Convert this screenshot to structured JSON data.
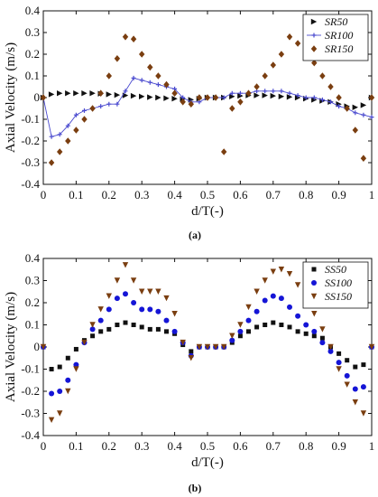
{
  "chart_data": [
    {
      "type": "line",
      "panel_label": "(a)",
      "xlabel": "d/T(-)",
      "ylabel": "Axial Velocity (m/s)",
      "xlim": [
        0,
        1
      ],
      "ylim": [
        -0.4,
        0.4
      ],
      "xticks": [
        0,
        0.1,
        0.2,
        0.3,
        0.4,
        0.5,
        0.6,
        0.7,
        0.8,
        0.9,
        1
      ],
      "yticks": [
        -0.4,
        -0.3,
        -0.2,
        -0.1,
        0,
        0.1,
        0.2,
        0.3,
        0.4
      ],
      "grid": false,
      "legend_position": "top-right",
      "series": [
        {
          "name": "SR50",
          "marker": "triangle-right",
          "color": "#111111",
          "line": false,
          "x": [
            0,
            0.025,
            0.05,
            0.075,
            0.1,
            0.125,
            0.15,
            0.175,
            0.2,
            0.225,
            0.25,
            0.275,
            0.3,
            0.325,
            0.35,
            0.375,
            0.4,
            0.425,
            0.45,
            0.475,
            0.5,
            0.525,
            0.55,
            0.575,
            0.6,
            0.625,
            0.65,
            0.675,
            0.7,
            0.725,
            0.75,
            0.775,
            0.8,
            0.825,
            0.85,
            0.875,
            0.9,
            0.925,
            0.95,
            0.975,
            1.0
          ],
          "y": [
            0,
            0.015,
            0.02,
            0.02,
            0.02,
            0.02,
            0.02,
            0.018,
            0.015,
            0.012,
            0.01,
            0.008,
            0.005,
            0.002,
            0,
            -0.003,
            -0.005,
            -0.007,
            -0.01,
            -0.005,
            0,
            0,
            0,
            0.005,
            0.008,
            0.01,
            0.01,
            0.01,
            0.008,
            0.005,
            0.003,
            0,
            -0.005,
            -0.01,
            -0.015,
            -0.02,
            -0.03,
            -0.04,
            -0.045,
            -0.035,
            0
          ]
        },
        {
          "name": "SR100",
          "marker": "plus",
          "color": "#4a4acf",
          "line": true,
          "x": [
            0,
            0.025,
            0.05,
            0.075,
            0.1,
            0.125,
            0.15,
            0.175,
            0.2,
            0.225,
            0.25,
            0.275,
            0.3,
            0.325,
            0.35,
            0.375,
            0.4,
            0.425,
            0.45,
            0.475,
            0.5,
            0.525,
            0.55,
            0.575,
            0.6,
            0.625,
            0.65,
            0.675,
            0.7,
            0.725,
            0.75,
            0.775,
            0.8,
            0.825,
            0.85,
            0.875,
            0.9,
            0.925,
            0.95,
            0.975,
            1.0
          ],
          "y": [
            0,
            -0.18,
            -0.17,
            -0.13,
            -0.08,
            -0.06,
            -0.05,
            -0.04,
            -0.03,
            -0.03,
            0.03,
            0.09,
            0.08,
            0.07,
            0.06,
            0.05,
            0.04,
            0,
            -0.02,
            -0.02,
            0,
            0,
            0,
            0.02,
            0.02,
            0.02,
            0.03,
            0.03,
            0.03,
            0.03,
            0.02,
            0.01,
            0,
            0,
            -0.01,
            -0.02,
            -0.04,
            -0.05,
            -0.07,
            -0.08,
            -0.09
          ]
        },
        {
          "name": "SR150",
          "marker": "diamond",
          "color": "#7a3e10",
          "line": false,
          "x": [
            0,
            0.025,
            0.05,
            0.075,
            0.1,
            0.125,
            0.15,
            0.175,
            0.2,
            0.225,
            0.25,
            0.275,
            0.3,
            0.325,
            0.35,
            0.375,
            0.4,
            0.425,
            0.45,
            0.475,
            0.5,
            0.525,
            0.55,
            0.575,
            0.6,
            0.625,
            0.65,
            0.675,
            0.7,
            0.725,
            0.75,
            0.775,
            0.8,
            0.825,
            0.85,
            0.875,
            0.9,
            0.925,
            0.95,
            0.975,
            1.0
          ],
          "y": [
            0,
            -0.3,
            -0.25,
            -0.2,
            -0.15,
            -0.1,
            -0.05,
            0.02,
            0.1,
            0.18,
            0.28,
            0.27,
            0.2,
            0.14,
            0.1,
            0.06,
            0.02,
            -0.02,
            -0.03,
            0,
            0,
            0,
            -0.25,
            -0.05,
            -0.02,
            0.02,
            0.05,
            0.1,
            0.15,
            0.2,
            0.28,
            0.25,
            0.2,
            0.16,
            0.1,
            0.05,
            0,
            -0.05,
            -0.15,
            -0.28,
            0
          ]
        }
      ]
    },
    {
      "type": "line",
      "panel_label": "(b)",
      "xlabel": "d/T(-)",
      "ylabel": "Axial Velocity (m/s)",
      "xlim": [
        0,
        1
      ],
      "ylim": [
        -0.4,
        0.4
      ],
      "xticks": [
        0,
        0.1,
        0.2,
        0.3,
        0.4,
        0.5,
        0.6,
        0.7,
        0.8,
        0.9,
        1
      ],
      "yticks": [
        -0.4,
        -0.3,
        -0.2,
        -0.1,
        0,
        0.1,
        0.2,
        0.3,
        0.4
      ],
      "grid": false,
      "legend_position": "top-right",
      "series": [
        {
          "name": "SS50",
          "marker": "square",
          "color": "#111111",
          "line": false,
          "x": [
            0,
            0.025,
            0.05,
            0.075,
            0.1,
            0.125,
            0.15,
            0.175,
            0.2,
            0.225,
            0.25,
            0.275,
            0.3,
            0.325,
            0.35,
            0.375,
            0.4,
            0.425,
            0.45,
            0.475,
            0.5,
            0.525,
            0.55,
            0.575,
            0.6,
            0.625,
            0.65,
            0.675,
            0.7,
            0.725,
            0.75,
            0.775,
            0.8,
            0.825,
            0.85,
            0.875,
            0.9,
            0.925,
            0.95,
            0.975,
            1.0
          ],
          "y": [
            0,
            -0.1,
            -0.09,
            -0.05,
            -0.01,
            0.03,
            0.05,
            0.07,
            0.08,
            0.1,
            0.11,
            0.1,
            0.09,
            0.08,
            0.08,
            0.07,
            0.06,
            0.01,
            -0.02,
            0,
            0,
            0,
            0,
            0.02,
            0.05,
            0.07,
            0.09,
            0.1,
            0.11,
            0.1,
            0.09,
            0.07,
            0.06,
            0.05,
            0.04,
            0,
            -0.03,
            -0.06,
            -0.09,
            -0.08,
            0
          ]
        },
        {
          "name": "SS100",
          "marker": "circle",
          "color": "#1515d6",
          "line": false,
          "x": [
            0,
            0.025,
            0.05,
            0.075,
            0.1,
            0.125,
            0.15,
            0.175,
            0.2,
            0.225,
            0.25,
            0.275,
            0.3,
            0.325,
            0.35,
            0.375,
            0.4,
            0.425,
            0.45,
            0.475,
            0.5,
            0.525,
            0.55,
            0.575,
            0.6,
            0.625,
            0.65,
            0.675,
            0.7,
            0.725,
            0.75,
            0.775,
            0.8,
            0.825,
            0.85,
            0.875,
            0.9,
            0.925,
            0.95,
            0.975,
            1.0
          ],
          "y": [
            0,
            -0.21,
            -0.2,
            -0.15,
            -0.08,
            0.02,
            0.08,
            0.12,
            0.17,
            0.22,
            0.24,
            0.2,
            0.17,
            0.17,
            0.16,
            0.12,
            0.07,
            0.02,
            -0.04,
            0,
            0,
            0,
            0,
            0.03,
            0.07,
            0.12,
            0.16,
            0.21,
            0.23,
            0.22,
            0.18,
            0.14,
            0.1,
            0.07,
            0.02,
            -0.02,
            -0.07,
            -0.13,
            -0.19,
            -0.18,
            0
          ]
        },
        {
          "name": "SS150",
          "marker": "triangle-down",
          "color": "#7a3e10",
          "line": false,
          "x": [
            0,
            0.025,
            0.05,
            0.075,
            0.1,
            0.125,
            0.15,
            0.175,
            0.2,
            0.225,
            0.25,
            0.275,
            0.3,
            0.325,
            0.35,
            0.375,
            0.4,
            0.425,
            0.45,
            0.475,
            0.5,
            0.525,
            0.55,
            0.575,
            0.6,
            0.625,
            0.65,
            0.675,
            0.7,
            0.725,
            0.75,
            0.775,
            0.8,
            0.825,
            0.85,
            0.875,
            0.9,
            0.925,
            0.95,
            0.975,
            1.0
          ],
          "y": [
            0,
            -0.33,
            -0.3,
            -0.2,
            -0.1,
            0.02,
            0.1,
            0.17,
            0.23,
            0.3,
            0.37,
            0.3,
            0.25,
            0.25,
            0.25,
            0.22,
            0.15,
            0.02,
            -0.05,
            0,
            0,
            0,
            0,
            0.05,
            0.1,
            0.18,
            0.25,
            0.3,
            0.34,
            0.35,
            0.33,
            0.28,
            0.22,
            0.15,
            0.08,
            0,
            -0.1,
            -0.17,
            -0.25,
            -0.3,
            0
          ]
        }
      ]
    }
  ]
}
